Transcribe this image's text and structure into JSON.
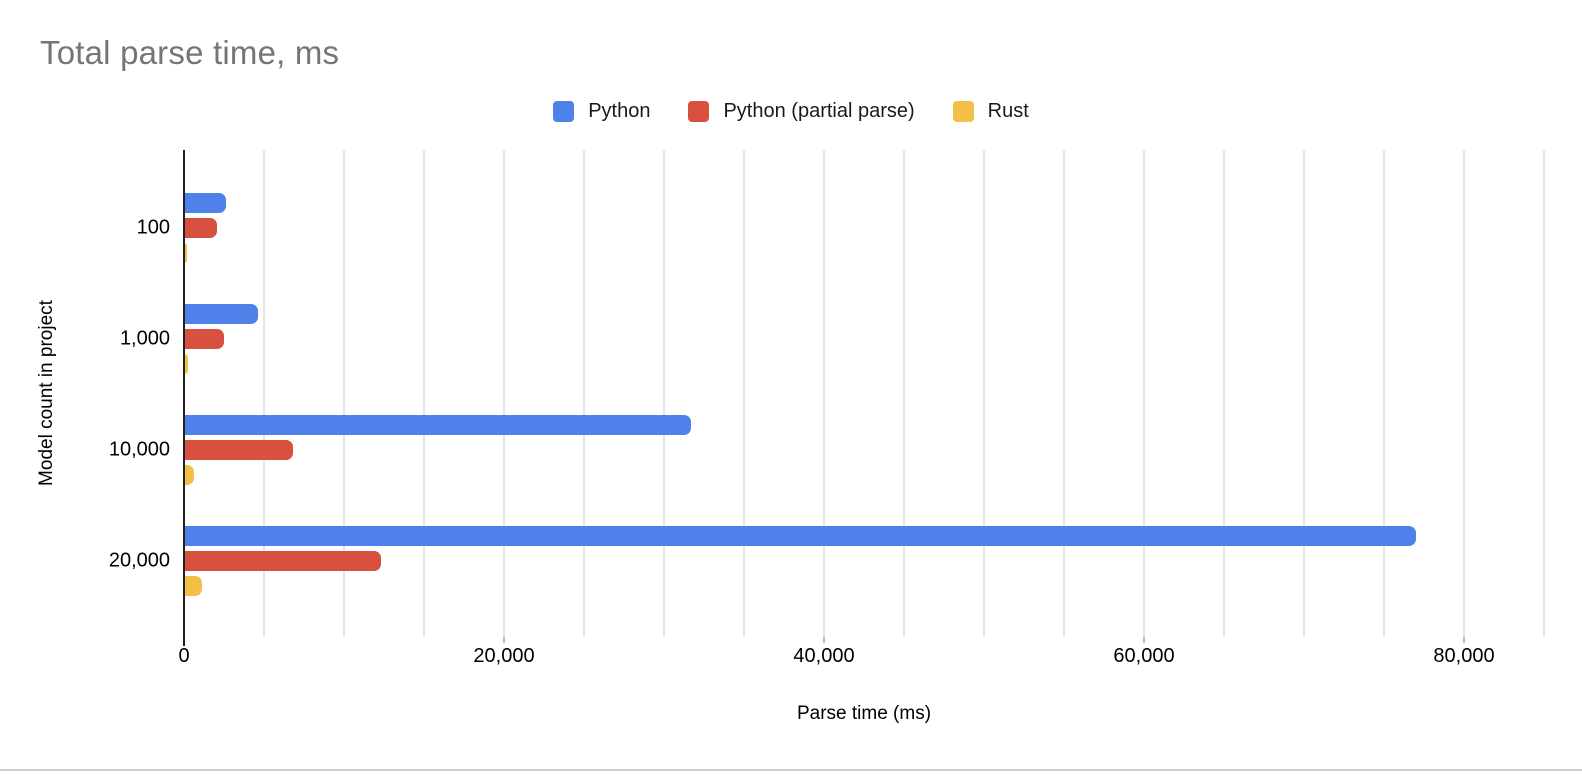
{
  "styles": {
    "title_color": "#757575",
    "text_color": "#000000",
    "gridline_color": "#e6e6e6",
    "axis_color": "#212121",
    "bottom_divider_color": "#cfcfcf"
  },
  "chart_data": {
    "type": "bar",
    "orientation": "horizontal",
    "title": "Total parse time, ms",
    "xlabel": "Parse time (ms)",
    "ylabel": "Model count in project",
    "categories": [
      "100",
      "1,000",
      "10,000",
      "20,000"
    ],
    "series": [
      {
        "name": "Python",
        "color": "#4e81e9",
        "values": [
          2650,
          4600,
          31700,
          77000
        ]
      },
      {
        "name": "Python (partial parse)",
        "color": "#d8503f",
        "values": [
          2050,
          2500,
          6800,
          12300
        ]
      },
      {
        "name": "Rust",
        "color": "#f2c044",
        "values": [
          200,
          250,
          650,
          1100
        ]
      }
    ],
    "xlim": [
      0,
      85000
    ],
    "x_ticks": [
      {
        "value": 0,
        "label": "0"
      },
      {
        "value": 20000,
        "label": "20,000"
      },
      {
        "value": 40000,
        "label": "40,000"
      },
      {
        "value": 60000,
        "label": "60,000"
      },
      {
        "value": 80000,
        "label": "80,000"
      }
    ],
    "gridline_step": 5000,
    "grid": true,
    "legend_position": "top"
  }
}
